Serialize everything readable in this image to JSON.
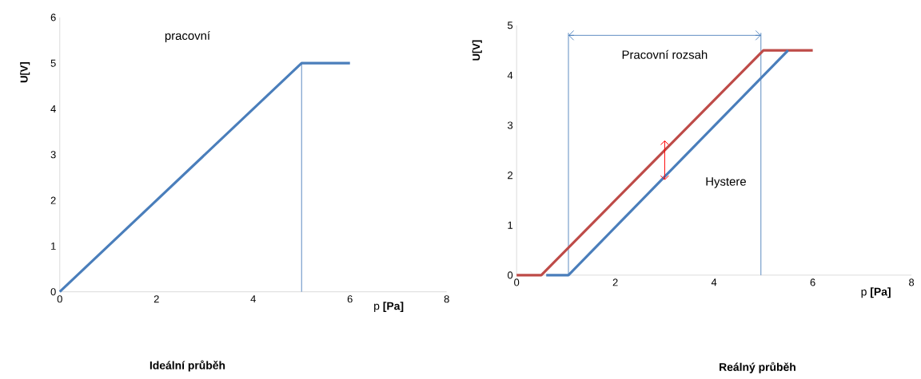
{
  "chart_data": [
    {
      "type": "line",
      "title": "Ideální průběh",
      "xlabel": "p **[Pa]**",
      "ylabel": "U[V]",
      "xlim": [
        0,
        8
      ],
      "ylim": [
        0,
        6
      ],
      "xticks": [
        0,
        2,
        4,
        6,
        8
      ],
      "yticks": [
        0,
        1,
        2,
        3,
        4,
        5,
        6
      ],
      "grid": false,
      "series": [
        {
          "color": "#4a7ebb",
          "x": [
            0,
            5,
            6
          ],
          "values": [
            0,
            5,
            5
          ]
        }
      ],
      "ref_lines": [
        {
          "axis": "x",
          "value": 5,
          "color": "#4a7ebb"
        }
      ],
      "annotations": [
        "pracovní"
      ]
    },
    {
      "type": "line",
      "title": "Reálný průběh",
      "xlabel": "p **[Pa]**",
      "ylabel": "U[V]",
      "xlim": [
        0,
        8
      ],
      "ylim": [
        0,
        5
      ],
      "xticks": [
        0,
        2,
        4,
        6,
        8
      ],
      "yticks": [
        0,
        1,
        2,
        3,
        4,
        5
      ],
      "grid": false,
      "series": [
        {
          "color": "#be4b48",
          "x": [
            0,
            0.5,
            5,
            6
          ],
          "values": [
            0,
            0,
            4.5,
            4.5
          ]
        },
        {
          "color": "#4a7ebb",
          "x": [
            0.6,
            1.05,
            5.5
          ],
          "values": [
            0,
            0,
            4.5
          ]
        }
      ],
      "ref_lines": [
        {
          "axis": "x",
          "value": 1.05,
          "color": "#4a7ebb"
        },
        {
          "axis": "x",
          "value": 4.95,
          "color": "#4a7ebb"
        },
        {
          "axis": "y",
          "value": 4.8,
          "color": "#4a7ebb",
          "label": "Pracovní rozsah"
        }
      ],
      "annotations": [
        "Hystere"
      ]
    }
  ]
}
